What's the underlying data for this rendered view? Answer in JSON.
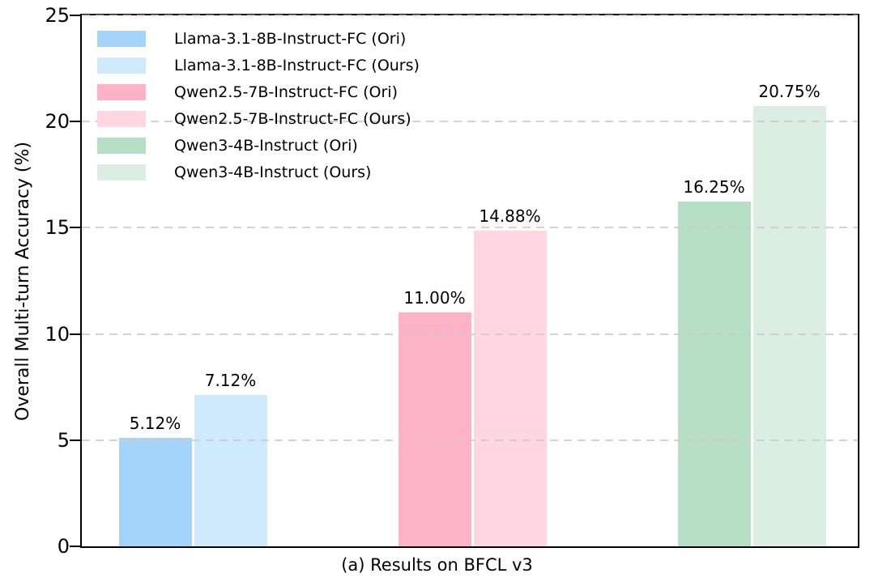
{
  "chart_data": {
    "type": "bar",
    "title": "",
    "xlabel": "(a) Results on BFCL v3",
    "ylabel": "Overall Multi-turn Accuracy (%)",
    "ylim": [
      0,
      25
    ],
    "yticks": [
      0,
      5,
      10,
      15,
      20,
      25
    ],
    "ytick_labels": [
      "0",
      "5",
      "10",
      "15",
      "20",
      "25"
    ],
    "grid": {
      "axis": "y",
      "style": "dashed",
      "color": "#cbcbcb",
      "drawn_over_bars": true
    },
    "legend": {
      "position": "upper-left",
      "frame": false
    },
    "group_pairs": [
      "Llama-3.1-8B-Instruct-FC",
      "Qwen2.5-7B-Instruct-FC",
      "Qwen3-4B-Instruct"
    ],
    "bars": [
      {
        "name": "Llama-3.1-8B-Instruct-FC (Ori)",
        "group": 0,
        "value": 5.12,
        "label": "5.12%",
        "color": "#a4d4fa"
      },
      {
        "name": "Llama-3.1-8B-Instruct-FC (Ours)",
        "group": 0,
        "value": 7.12,
        "label": "7.12%",
        "color": "#cfe9fd"
      },
      {
        "name": "Qwen2.5-7B-Instruct-FC (Ori)",
        "group": 1,
        "value": 11.0,
        "label": "11.00%",
        "color": "#fdb3c6"
      },
      {
        "name": "Qwen2.5-7B-Instruct-FC (Ours)",
        "group": 1,
        "value": 14.88,
        "label": "14.88%",
        "color": "#fed7e1"
      },
      {
        "name": "Qwen3-4B-Instruct (Ori)",
        "group": 2,
        "value": 16.25,
        "label": "16.25%",
        "color": "#b7dfc6"
      },
      {
        "name": "Qwen3-4B-Instruct (Ours)",
        "group": 2,
        "value": 20.75,
        "label": "20.75%",
        "color": "#daeee1"
      }
    ]
  }
}
